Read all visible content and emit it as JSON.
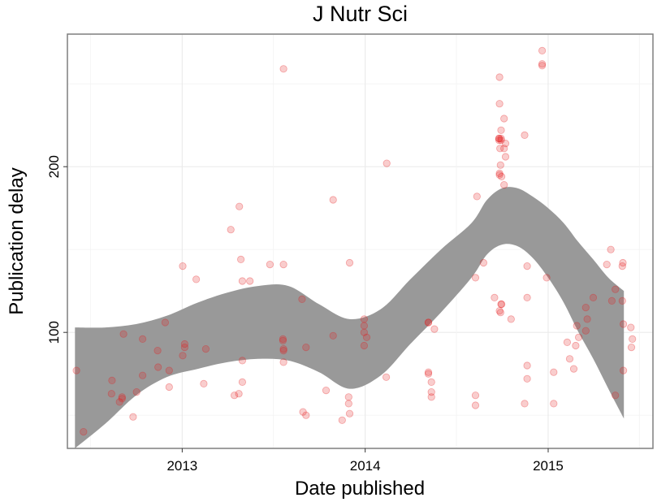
{
  "chart_data": {
    "type": "scatter",
    "title": "J Nutr Sci",
    "xlabel": "Date published",
    "ylabel": "Publication delay",
    "x_is_date": true,
    "xlim": [
      "2012-05-17",
      "2015-07-29"
    ],
    "ylim": [
      30,
      280
    ],
    "x_ticks": [
      "2013-01-01",
      "2014-01-01",
      "2015-01-01"
    ],
    "x_tick_labels": [
      "2013",
      "2014",
      "2015"
    ],
    "y_ticks": [
      100,
      200
    ],
    "y_tick_labels": [
      "100",
      "200"
    ],
    "grid": true,
    "point_color": "#e41a1c",
    "band_color": "#999999",
    "points": [
      [
        "2012-06-04",
        77
      ],
      [
        "2012-06-18",
        40
      ],
      [
        "2012-08-14",
        71
      ],
      [
        "2012-08-13",
        63
      ],
      [
        "2012-08-29",
        58
      ],
      [
        "2012-09-03",
        61
      ],
      [
        "2012-09-03",
        60
      ],
      [
        "2012-09-06",
        99
      ],
      [
        "2012-09-25",
        49
      ],
      [
        "2012-10-02",
        64
      ],
      [
        "2012-10-14",
        74
      ],
      [
        "2012-10-14",
        96
      ],
      [
        "2012-11-13",
        89
      ],
      [
        "2012-11-14",
        79
      ],
      [
        "2012-11-28",
        106
      ],
      [
        "2012-12-06",
        77
      ],
      [
        "2012-12-06",
        67
      ],
      [
        "2013-01-02",
        86
      ],
      [
        "2013-01-02",
        140
      ],
      [
        "2013-01-06",
        93
      ],
      [
        "2013-01-06",
        91
      ],
      [
        "2013-01-29",
        132
      ],
      [
        "2013-02-13",
        69
      ],
      [
        "2013-02-17",
        90
      ],
      [
        "2013-04-08",
        162
      ],
      [
        "2013-04-15",
        62
      ],
      [
        "2013-04-24",
        63
      ],
      [
        "2013-04-25",
        176
      ],
      [
        "2013-04-28",
        144
      ],
      [
        "2013-05-01",
        131
      ],
      [
        "2013-05-01",
        83
      ],
      [
        "2013-05-01",
        70
      ],
      [
        "2013-05-16",
        131
      ],
      [
        "2013-06-25",
        141
      ],
      [
        "2013-07-22",
        259
      ],
      [
        "2013-07-22",
        141
      ],
      [
        "2013-07-21",
        96
      ],
      [
        "2013-07-21",
        95
      ],
      [
        "2013-07-22",
        90
      ],
      [
        "2013-07-22",
        89
      ],
      [
        "2013-07-22",
        82
      ],
      [
        "2013-08-28",
        120
      ],
      [
        "2013-09-05",
        91
      ],
      [
        "2013-08-30",
        52
      ],
      [
        "2013-09-05",
        50
      ],
      [
        "2013-10-15",
        65
      ],
      [
        "2013-10-29",
        180
      ],
      [
        "2013-10-29",
        98
      ],
      [
        "2013-11-16",
        47
      ],
      [
        "2013-11-29",
        61
      ],
      [
        "2013-11-29",
        57
      ],
      [
        "2013-12-01",
        51
      ],
      [
        "2013-12-01",
        142
      ],
      [
        "2013-12-30",
        108
      ],
      [
        "2013-12-30",
        104
      ],
      [
        "2013-12-30",
        100
      ],
      [
        "2013-12-30",
        92
      ],
      [
        "2014-01-04",
        97
      ],
      [
        "2014-02-13",
        202
      ],
      [
        "2014-02-12",
        73
      ],
      [
        "2014-05-07",
        106
      ],
      [
        "2014-05-07",
        106
      ],
      [
        "2014-05-07",
        76
      ],
      [
        "2014-05-07",
        75
      ],
      [
        "2014-05-13",
        70
      ],
      [
        "2014-05-13",
        64
      ],
      [
        "2014-05-13",
        61
      ],
      [
        "2014-05-19",
        102
      ],
      [
        "2014-08-12",
        182
      ],
      [
        "2014-08-09",
        133
      ],
      [
        "2014-08-09",
        62
      ],
      [
        "2014-08-09",
        56
      ],
      [
        "2014-08-25",
        142
      ],
      [
        "2014-09-16",
        121
      ],
      [
        "2014-09-26",
        254
      ],
      [
        "2014-09-26",
        238
      ],
      [
        "2014-09-25",
        217
      ],
      [
        "2014-09-25",
        217
      ],
      [
        "2014-09-25",
        216
      ],
      [
        "2014-09-27",
        211
      ],
      [
        "2014-09-29",
        222
      ],
      [
        "2014-09-29",
        217
      ],
      [
        "2014-09-29",
        216
      ],
      [
        "2014-09-26",
        196
      ],
      [
        "2014-09-26",
        195
      ],
      [
        "2014-09-28",
        201
      ],
      [
        "2014-09-30",
        194
      ],
      [
        "2014-10-05",
        229
      ],
      [
        "2014-10-05",
        211
      ],
      [
        "2014-10-05",
        189
      ],
      [
        "2014-10-08",
        214
      ],
      [
        "2014-10-08",
        206
      ],
      [
        "2014-09-28",
        112
      ],
      [
        "2014-09-26",
        113
      ],
      [
        "2014-09-29",
        117
      ],
      [
        "2014-09-30",
        117
      ],
      [
        "2014-10-19",
        108
      ],
      [
        "2014-11-15",
        219
      ],
      [
        "2014-11-15",
        57
      ],
      [
        "2014-11-20",
        140
      ],
      [
        "2014-11-20",
        121
      ],
      [
        "2014-11-20",
        80
      ],
      [
        "2014-11-20",
        72
      ],
      [
        "2014-12-20",
        270
      ],
      [
        "2014-12-20",
        262
      ],
      [
        "2014-12-20",
        261
      ],
      [
        "2014-12-29",
        133
      ],
      [
        "2015-01-12",
        76
      ],
      [
        "2015-01-12",
        57
      ],
      [
        "2015-02-08",
        94
      ],
      [
        "2015-02-13",
        84
      ],
      [
        "2015-02-21",
        78
      ],
      [
        "2015-02-25",
        92
      ],
      [
        "2015-02-27",
        104
      ],
      [
        "2015-03-03",
        97
      ],
      [
        "2015-03-17",
        101
      ],
      [
        "2015-03-17",
        115
      ],
      [
        "2015-03-20",
        108
      ],
      [
        "2015-04-01",
        121
      ],
      [
        "2015-04-28",
        141
      ],
      [
        "2015-05-06",
        150
      ],
      [
        "2015-05-08",
        119
      ],
      [
        "2015-05-15",
        126
      ],
      [
        "2015-05-15",
        62
      ],
      [
        "2015-05-29",
        119
      ],
      [
        "2015-05-29",
        140
      ],
      [
        "2015-05-30",
        142
      ],
      [
        "2015-05-31",
        105
      ],
      [
        "2015-05-31",
        77
      ],
      [
        "2015-06-15",
        103
      ],
      [
        "2015-06-16",
        91
      ],
      [
        "2015-06-18",
        96
      ]
    ],
    "band": {
      "x": [
        "2012-06-01",
        "2012-08-01",
        "2012-10-01",
        "2012-12-01",
        "2013-02-01",
        "2013-04-01",
        "2013-06-01",
        "2013-08-01",
        "2013-10-01",
        "2013-12-01",
        "2014-02-01",
        "2014-04-01",
        "2014-06-01",
        "2014-08-01",
        "2014-09-01",
        "2014-10-01",
        "2014-11-01",
        "2014-12-01",
        "2015-01-01",
        "2015-02-01",
        "2015-03-01",
        "2015-04-01",
        "2015-05-01",
        "2015-06-01"
      ],
      "upper": [
        103,
        103,
        105,
        110,
        118,
        124,
        128,
        128,
        117,
        108,
        114,
        132,
        150,
        166,
        180,
        187,
        187,
        182,
        175,
        166,
        155,
        144,
        133,
        125
      ],
      "lower": [
        30,
        45,
        62,
        73,
        78,
        82,
        84,
        83,
        76,
        66,
        74,
        93,
        112,
        133,
        147,
        153,
        152,
        145,
        133,
        118,
        101,
        84,
        66,
        48
      ]
    }
  }
}
